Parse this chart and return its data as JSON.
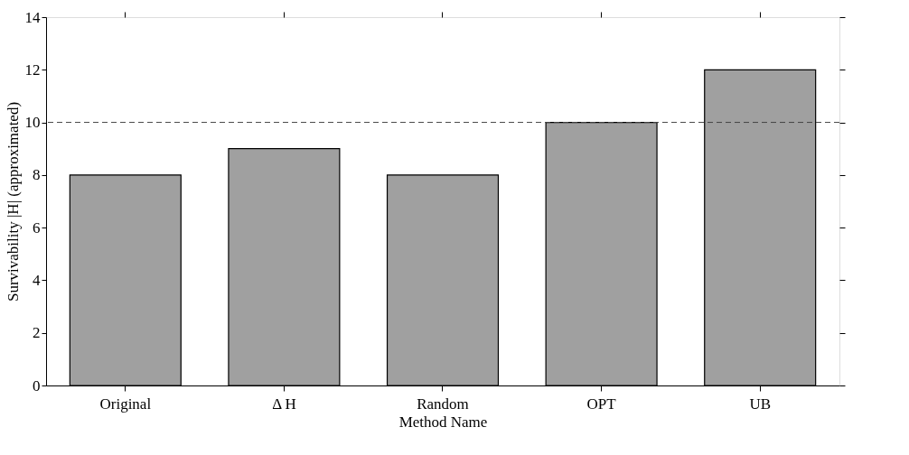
{
  "chart_data": {
    "type": "bar",
    "xlabel": "Method Name",
    "ylabel": "Survivability |H| (approximated)",
    "categories": [
      "Original",
      "Δ H",
      "Random",
      "OPT",
      "UB"
    ],
    "values": [
      8,
      9,
      8,
      10,
      12
    ],
    "color": "#a0a0a0",
    "ylim": [
      0,
      14
    ],
    "yticks": [
      0,
      2,
      4,
      6,
      8,
      10,
      12,
      14
    ],
    "ref_lines": [
      {
        "axis": "y",
        "value": 10,
        "line_style": "dashed",
        "color": "#444444"
      }
    ],
    "grid": false
  }
}
